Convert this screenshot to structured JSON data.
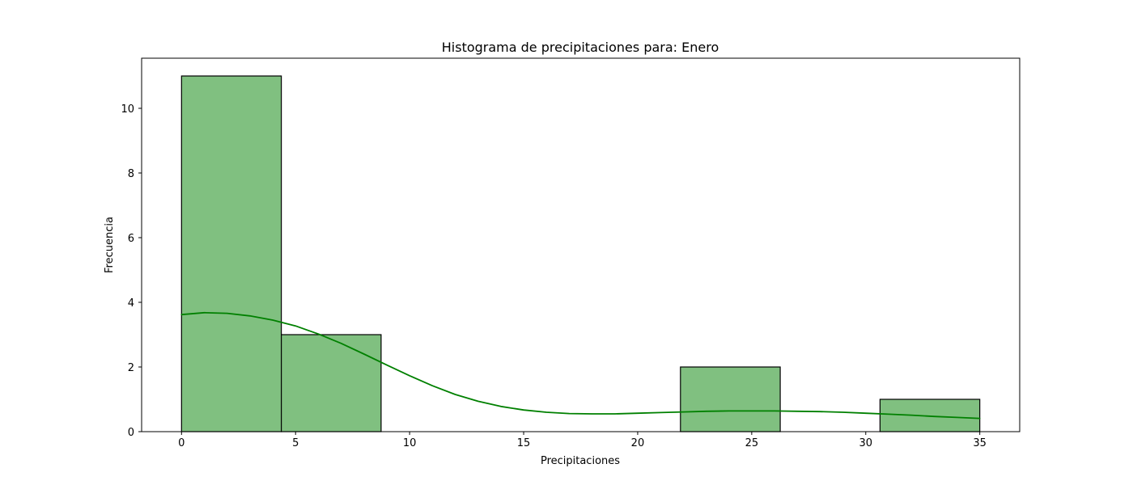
{
  "chart_data": {
    "type": "bar",
    "title": "Histograma de precipitaciones para: Enero",
    "xlabel": "Precipitaciones",
    "ylabel": "Frecuencia",
    "bins": [
      {
        "start": 0.0,
        "end": 4.375,
        "count": 11
      },
      {
        "start": 4.375,
        "end": 8.75,
        "count": 3
      },
      {
        "start": 8.75,
        "end": 13.125,
        "count": 0
      },
      {
        "start": 13.125,
        "end": 17.5,
        "count": 0
      },
      {
        "start": 17.5,
        "end": 21.875,
        "count": 0
      },
      {
        "start": 21.875,
        "end": 26.25,
        "count": 2
      },
      {
        "start": 26.25,
        "end": 30.625,
        "count": 0
      },
      {
        "start": 30.625,
        "end": 35.0,
        "count": 1
      }
    ],
    "kde": {
      "x": [
        0,
        1,
        2,
        3,
        4,
        5,
        6,
        7,
        8,
        9,
        10,
        11,
        12,
        13,
        14,
        15,
        16,
        17,
        18,
        19,
        20,
        21,
        22,
        23,
        24,
        25,
        26,
        27,
        28,
        29,
        30,
        31,
        32,
        33,
        34,
        35
      ],
      "y": [
        3.62,
        3.68,
        3.66,
        3.58,
        3.45,
        3.27,
        3.02,
        2.73,
        2.4,
        2.06,
        1.73,
        1.42,
        1.15,
        0.94,
        0.78,
        0.67,
        0.6,
        0.56,
        0.55,
        0.55,
        0.57,
        0.59,
        0.61,
        0.63,
        0.64,
        0.64,
        0.64,
        0.63,
        0.62,
        0.6,
        0.57,
        0.54,
        0.51,
        0.47,
        0.44,
        0.41
      ]
    },
    "xlim": [
      -1.75,
      36.75
    ],
    "ylim": [
      0,
      11.55
    ],
    "xticks": [
      0,
      5,
      10,
      15,
      20,
      25,
      30,
      35
    ],
    "yticks": [
      0,
      2,
      4,
      6,
      8,
      10
    ],
    "grid": false,
    "legend": "none"
  },
  "colors": {
    "bar_fill": "#80c080",
    "bar_edge": "#000000",
    "kde_line": "#008000",
    "axes": "#000000"
  }
}
